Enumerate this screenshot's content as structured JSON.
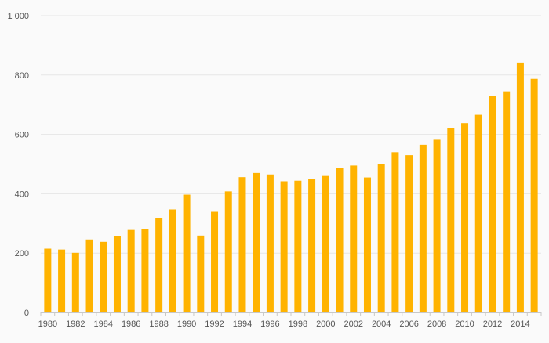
{
  "chart_data": {
    "type": "bar",
    "title": "",
    "xlabel": "",
    "ylabel": "",
    "ylim": [
      0,
      1000
    ],
    "yticks": [
      0,
      200,
      400,
      600,
      800,
      1000
    ],
    "ytick_labels": [
      "0",
      "200",
      "400",
      "600",
      "800",
      "1 000"
    ],
    "grid": true,
    "legend": "none",
    "color": "#ffb300",
    "categories": [
      "1980",
      "1981",
      "1982",
      "1983",
      "1984",
      "1985",
      "1986",
      "1987",
      "1988",
      "1989",
      "1990",
      "1991",
      "1992",
      "1993",
      "1994",
      "1995",
      "1996",
      "1997",
      "1998",
      "1999",
      "2000",
      "2001",
      "2002",
      "2003",
      "2004",
      "2005",
      "2006",
      "2007",
      "2008",
      "2009",
      "2010",
      "2011",
      "2012",
      "2013",
      "2014",
      "2015"
    ],
    "xtick_labels": [
      "1980",
      "1982",
      "1984",
      "1986",
      "1988",
      "1990",
      "1992",
      "1994",
      "1996",
      "1998",
      "2000",
      "2002",
      "2004",
      "2006",
      "2008",
      "2010",
      "2012",
      "2014"
    ],
    "values": [
      215,
      212,
      201,
      246,
      238,
      257,
      278,
      282,
      317,
      347,
      397,
      259,
      339,
      408,
      456,
      470,
      465,
      442,
      444,
      450,
      460,
      487,
      495,
      455,
      500,
      540,
      530,
      565,
      582,
      621,
      638,
      666,
      730,
      745,
      842,
      787
    ]
  }
}
